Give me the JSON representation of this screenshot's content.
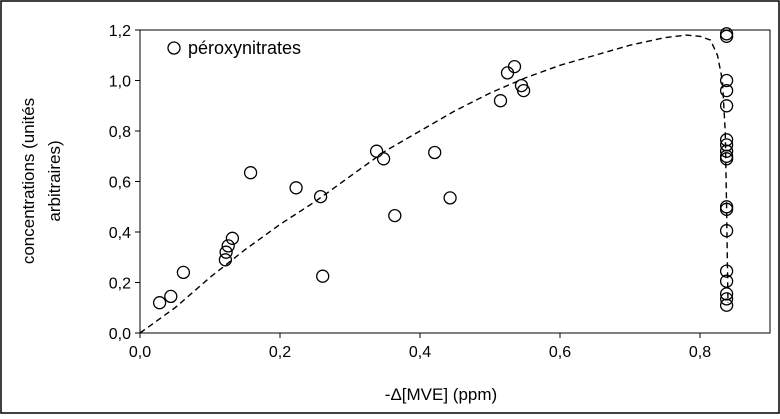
{
  "chart_data": {
    "type": "scatter",
    "xlabel": "-Δ[MVE] (ppm)",
    "ylabel_lines": [
      "concentrations (unités",
      "arbitraires)"
    ],
    "xlim": [
      0,
      0.9
    ],
    "ylim": [
      0,
      1.2
    ],
    "x_ticks": [
      0.0,
      0.2,
      0.4,
      0.6,
      0.8
    ],
    "x_tick_labels": [
      "0,0",
      "0,2",
      "0,4",
      "0,6",
      "0,8"
    ],
    "y_ticks": [
      0.0,
      0.2,
      0.4,
      0.6,
      0.8,
      1.0,
      1.2
    ],
    "y_tick_labels": [
      "0,0",
      "0,2",
      "0,4",
      "0,6",
      "0,8",
      "1,0",
      "1,2"
    ],
    "grid": false,
    "legend_position": "top-left",
    "series": [
      {
        "name": "péroxynitrates",
        "marker": "open-circle",
        "points": [
          [
            0.028,
            0.12
          ],
          [
            0.044,
            0.145
          ],
          [
            0.062,
            0.24
          ],
          [
            0.122,
            0.29
          ],
          [
            0.123,
            0.32
          ],
          [
            0.126,
            0.345
          ],
          [
            0.132,
            0.375
          ],
          [
            0.158,
            0.635
          ],
          [
            0.223,
            0.575
          ],
          [
            0.258,
            0.54
          ],
          [
            0.261,
            0.225
          ],
          [
            0.338,
            0.72
          ],
          [
            0.348,
            0.69
          ],
          [
            0.364,
            0.465
          ],
          [
            0.421,
            0.715
          ],
          [
            0.443,
            0.535
          ],
          [
            0.515,
            0.92
          ],
          [
            0.525,
            1.03
          ],
          [
            0.535,
            1.055
          ],
          [
            0.545,
            0.98
          ],
          [
            0.548,
            0.96
          ],
          [
            0.838,
            1.185
          ],
          [
            0.838,
            1.175
          ],
          [
            0.838,
            1.0
          ],
          [
            0.838,
            0.96
          ],
          [
            0.838,
            0.9
          ],
          [
            0.838,
            0.765
          ],
          [
            0.838,
            0.745
          ],
          [
            0.838,
            0.72
          ],
          [
            0.838,
            0.7
          ],
          [
            0.838,
            0.69
          ],
          [
            0.838,
            0.5
          ],
          [
            0.838,
            0.49
          ],
          [
            0.838,
            0.405
          ],
          [
            0.838,
            0.245
          ],
          [
            0.838,
            0.205
          ],
          [
            0.838,
            0.155
          ],
          [
            0.838,
            0.135
          ],
          [
            0.838,
            0.11
          ]
        ]
      }
    ],
    "fit_curve": {
      "style": "dashed",
      "points": [
        [
          0.0,
          0.0
        ],
        [
          0.05,
          0.1
        ],
        [
          0.1,
          0.22
        ],
        [
          0.15,
          0.33
        ],
        [
          0.2,
          0.43
        ],
        [
          0.25,
          0.52
        ],
        [
          0.3,
          0.62
        ],
        [
          0.35,
          0.72
        ],
        [
          0.4,
          0.8
        ],
        [
          0.45,
          0.88
        ],
        [
          0.5,
          0.95
        ],
        [
          0.55,
          1.01
        ],
        [
          0.6,
          1.06
        ],
        [
          0.65,
          1.1
        ],
        [
          0.7,
          1.14
        ],
        [
          0.75,
          1.17
        ],
        [
          0.78,
          1.18
        ],
        [
          0.8,
          1.175
        ],
        [
          0.815,
          1.16
        ],
        [
          0.825,
          1.1
        ],
        [
          0.832,
          1.0
        ],
        [
          0.836,
          0.8
        ],
        [
          0.838,
          0.5
        ],
        [
          0.839,
          0.3
        ],
        [
          0.84,
          0.12
        ]
      ]
    }
  }
}
